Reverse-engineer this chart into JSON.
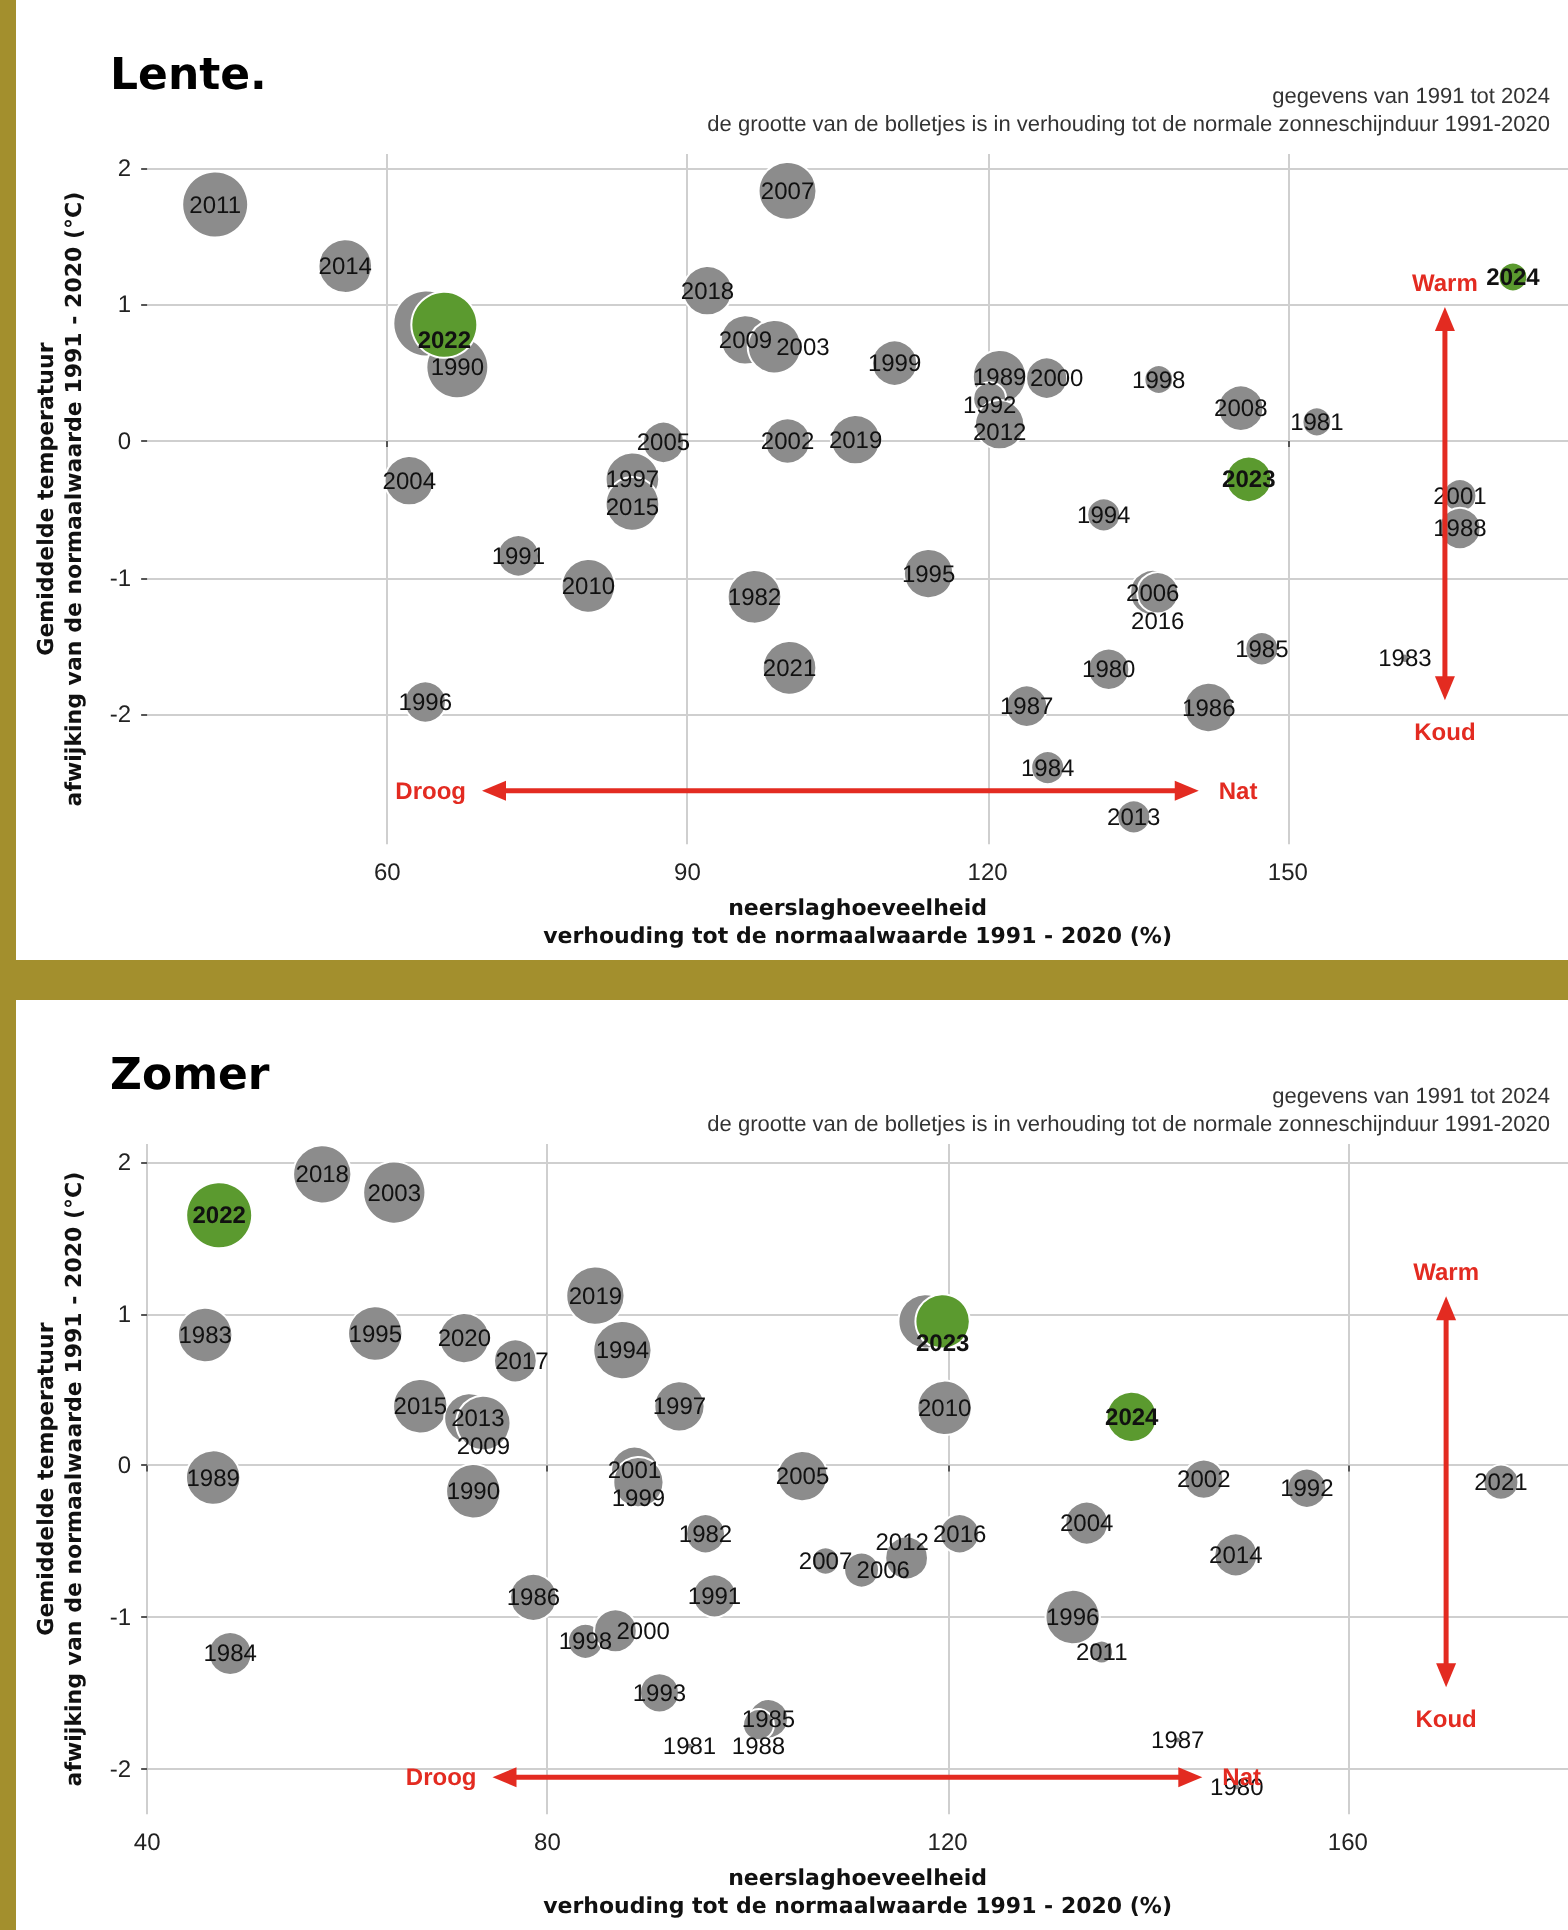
{
  "chart_data": [
    {
      "type": "bubble",
      "title": "Lente.",
      "subtitle": "gegevens van 1991 tot 2024",
      "xlabel": "neerslaghoeveelheid\nverhouding tot de normaalwaarde 1991 - 2020 (%)",
      "ylabel": "Gemiddelde temperatuur\nafwijking van de normaalwaarde 1991 - 2020 (°C)",
      "annotations": [
        "de grootte van de bolletjes is in verhouding tot de normale zonneschijnduur 1991-2020",
        "Droog",
        "Nat",
        "Warm",
        "Koud"
      ],
      "xlim": [
        36,
        178
      ],
      "ylim": [
        -2.95,
        2.1
      ],
      "xticks": [
        60,
        90,
        120,
        150
      ],
      "yticks": [
        -2,
        -1,
        0,
        1,
        2
      ],
      "grid": true,
      "series": [
        {
          "name": "2011",
          "color": "#8c8c8c",
          "x": [
            42.8
          ],
          "values": [
            1.73
          ],
          "sizes": [
            1
          ]
        },
        {
          "name": "2014",
          "color": "#8c8c8c",
          "x": [
            55.8
          ],
          "values": [
            1.28
          ],
          "sizes": [
            0.66
          ]
        },
        {
          "color": "#8c8c8c",
          "x": [
            63.9
          ],
          "values": [
            0.86
          ],
          "sizes": [
            1
          ]
        },
        {
          "name": "1990",
          "color": "#8c8c8c",
          "x": [
            67.0
          ],
          "values": [
            0.54
          ],
          "sizes": [
            0.88
          ]
        },
        {
          "name": "2007",
          "color": "#8c8c8c",
          "x": [
            100.0
          ],
          "values": [
            1.83
          ],
          "sizes": [
            0.77
          ]
        },
        {
          "name": "2018",
          "color": "#8c8c8c",
          "x": [
            92.0
          ],
          "values": [
            1.1
          ],
          "sizes": [
            0.56
          ]
        },
        {
          "name": "2009",
          "color": "#8c8c8c",
          "x": [
            95.8
          ],
          "values": [
            0.74
          ],
          "sizes": [
            0.56
          ]
        },
        {
          "name": "2003",
          "color": "#8c8c8c",
          "x": [
            98.7
          ],
          "values": [
            0.69
          ],
          "sizes": [
            0.66
          ]
        },
        {
          "name": "2005",
          "color": "#8c8c8c",
          "x": [
            87.6
          ],
          "values": [
            -0.01
          ],
          "sizes": [
            0.39
          ]
        },
        {
          "name": "2002",
          "color": "#8c8c8c",
          "x": [
            100.0
          ],
          "values": [
            0.0
          ],
          "sizes": [
            0.47
          ]
        },
        {
          "name": "2004",
          "color": "#8c8c8c",
          "x": [
            62.2
          ],
          "values": [
            -0.29
          ],
          "sizes": [
            0.56
          ]
        },
        {
          "name": "1997",
          "color": "#8c8c8c",
          "x": [
            84.5
          ],
          "values": [
            -0.28
          ],
          "sizes": [
            0.66
          ]
        },
        {
          "name": "2015",
          "color": "#8c8c8c",
          "x": [
            84.5
          ],
          "values": [
            -0.46
          ],
          "sizes": [
            0.66
          ]
        },
        {
          "name": "1991",
          "color": "#8c8c8c",
          "x": [
            73.1
          ],
          "values": [
            -0.84
          ],
          "sizes": [
            0.39
          ]
        },
        {
          "name": "2010",
          "color": "#8c8c8c",
          "x": [
            80.1
          ],
          "values": [
            -1.06
          ],
          "sizes": [
            0.66
          ]
        },
        {
          "name": "1982",
          "color": "#8c8c8c",
          "x": [
            96.7
          ],
          "values": [
            -1.14
          ],
          "sizes": [
            0.66
          ]
        },
        {
          "name": "2021",
          "color": "#8c8c8c",
          "x": [
            100.2
          ],
          "values": [
            -1.66
          ],
          "sizes": [
            0.66
          ]
        },
        {
          "name": "1996",
          "color": "#8c8c8c",
          "x": [
            63.8
          ],
          "values": [
            -1.91
          ],
          "sizes": [
            0.39
          ]
        },
        {
          "name": "1999",
          "color": "#8c8c8c",
          "x": [
            110.7
          ],
          "values": [
            0.57
          ],
          "sizes": [
            0.47
          ]
        },
        {
          "name": "1989",
          "color": "#8c8c8c",
          "x": [
            121.2
          ],
          "values": [
            0.47
          ],
          "sizes": [
            0.66
          ]
        },
        {
          "name": "1992",
          "color": "#8c8c8c",
          "x": [
            120.2
          ],
          "values": [
            0.31
          ],
          "sizes": [
            0.25
          ]
        },
        {
          "name": "2000",
          "color": "#8c8c8c",
          "x": [
            125.9
          ],
          "values": [
            0.46
          ],
          "sizes": [
            0.39
          ]
        },
        {
          "name": "2012",
          "color": "#8c8c8c",
          "x": [
            121.2
          ],
          "values": [
            0.12
          ],
          "sizes": [
            0.56
          ]
        },
        {
          "name": "1998",
          "color": "#8c8c8c",
          "x": [
            137.1
          ],
          "values": [
            0.45
          ],
          "sizes": [
            0.19
          ]
        },
        {
          "name": "2008",
          "color": "#8c8c8c",
          "x": [
            145.3
          ],
          "values": [
            0.24
          ],
          "sizes": [
            0.47
          ]
        },
        {
          "name": "1981",
          "color": "#8c8c8c",
          "x": [
            152.9
          ],
          "values": [
            0.14
          ],
          "sizes": [
            0.19
          ]
        },
        {
          "name": "2019",
          "color": "#8c8c8c",
          "x": [
            106.8
          ],
          "values": [
            0.01
          ],
          "sizes": [
            0.56
          ]
        },
        {
          "name": "1994",
          "color": "#8c8c8c",
          "x": [
            131.6
          ],
          "values": [
            -0.54
          ],
          "sizes": [
            0.25
          ]
        },
        {
          "name": "2001",
          "color": "#8c8c8c",
          "x": [
            167.2
          ],
          "values": [
            -0.4
          ],
          "sizes": [
            0.25
          ]
        },
        {
          "name": "1988",
          "color": "#8c8c8c",
          "x": [
            167.2
          ],
          "values": [
            -0.64
          ],
          "sizes": [
            0.39
          ]
        },
        {
          "name": "1995",
          "color": "#8c8c8c",
          "x": [
            114.1
          ],
          "values": [
            -0.97
          ],
          "sizes": [
            0.56
          ]
        },
        {
          "name": "2006",
          "color": "#8c8c8c",
          "x": [
            136.5
          ],
          "values": [
            -1.11
          ],
          "sizes": [
            0.47
          ]
        },
        {
          "name": "2016",
          "color": "#8c8c8c",
          "x": [
            137.0
          ],
          "values": [
            -1.11
          ],
          "sizes": [
            0.39
          ]
        },
        {
          "name": "1985",
          "color": "#8c8c8c",
          "x": [
            147.4
          ],
          "values": [
            -1.52
          ],
          "sizes": [
            0.25
          ]
        },
        {
          "name": "1983",
          "color": "#8c8c8c",
          "x": [
            161.7
          ],
          "values": [
            -1.59
          ],
          "sizes": [
            0.02
          ]
        },
        {
          "name": "1980",
          "color": "#8c8c8c",
          "x": [
            132.1
          ],
          "values": [
            -1.67
          ],
          "sizes": [
            0.39
          ]
        },
        {
          "name": "1987",
          "color": "#8c8c8c",
          "x": [
            123.9
          ],
          "values": [
            -1.94
          ],
          "sizes": [
            0.39
          ]
        },
        {
          "name": "1986",
          "color": "#8c8c8c",
          "x": [
            142.1
          ],
          "values": [
            -1.95
          ],
          "sizes": [
            0.56
          ]
        },
        {
          "name": "1984",
          "color": "#8c8c8c",
          "x": [
            126.0
          ],
          "values": [
            -2.39
          ],
          "sizes": [
            0.25
          ]
        },
        {
          "name": "2013",
          "color": "#8c8c8c",
          "x": [
            134.6
          ],
          "values": [
            -2.75
          ],
          "sizes": [
            0.25
          ]
        },
        {
          "name": "2022",
          "color": "#5b9a2f",
          "x": [
            65.7
          ],
          "values": [
            0.85
          ],
          "sizes": [
            1
          ]
        },
        {
          "name": "2023",
          "color": "#5b9a2f",
          "x": [
            146.1
          ],
          "values": [
            -0.28
          ],
          "sizes": [
            0.47
          ]
        },
        {
          "name": "2024",
          "color": "#5b9a2f",
          "x": [
            172.5
          ],
          "values": [
            1.2
          ],
          "sizes": [
            0.19
          ]
        }
      ]
    },
    {
      "type": "bubble",
      "title": "Zomer",
      "subtitle": "gegevens van 1991 tot 2024",
      "xlabel": "neerslaghoeveelheid\nverhouding tot de normaalwaarde 1991 - 2020 (%)",
      "ylabel": "Gemiddelde temperatuur\nafwijking van de normaalwaarde 1991 - 2020 (°C)",
      "annotations": [
        "de grootte van de bolletjes is in verhouding tot de normale zonneschijnduur 1991-2020",
        "Droog",
        "Nat",
        "Warm",
        "Koud"
      ],
      "xlim": [
        40,
        182
      ],
      "ylim": [
        -2.3,
        2.12
      ],
      "xticks": [
        40,
        80,
        120,
        160
      ],
      "yticks": [
        -2,
        -1,
        0,
        1,
        2
      ],
      "grid": true,
      "series": [
        {
          "name": "2018",
          "color": "#8c8c8c",
          "x": [
            57.5
          ],
          "values": [
            1.92
          ],
          "sizes": [
            0.78
          ]
        },
        {
          "name": "2003",
          "color": "#8c8c8c",
          "x": [
            64.7
          ],
          "values": [
            1.8
          ],
          "sizes": [
            0.89
          ]
        },
        {
          "name": "1983",
          "color": "#8c8c8c",
          "x": [
            45.8
          ],
          "values": [
            0.86
          ],
          "sizes": [
            0.68
          ]
        },
        {
          "name": "1995",
          "color": "#8c8c8c",
          "x": [
            62.8
          ],
          "values": [
            0.87
          ],
          "sizes": [
            0.68
          ]
        },
        {
          "name": "2020",
          "color": "#8c8c8c",
          "x": [
            71.7
          ],
          "values": [
            0.84
          ],
          "sizes": [
            0.58
          ]
        },
        {
          "name": "2017",
          "color": "#8c8c8c",
          "x": [
            76.8
          ],
          "values": [
            0.69
          ],
          "sizes": [
            0.42
          ]
        },
        {
          "name": "2019",
          "color": "#8c8c8c",
          "x": [
            84.8
          ],
          "values": [
            1.12
          ],
          "sizes": [
            0.78
          ]
        },
        {
          "name": "1994",
          "color": "#8c8c8c",
          "x": [
            87.5
          ],
          "values": [
            0.76
          ],
          "sizes": [
            0.78
          ]
        },
        {
          "name": "2015",
          "color": "#8c8c8c",
          "x": [
            67.3
          ],
          "values": [
            0.39
          ],
          "sizes": [
            0.68
          ]
        },
        {
          "name": "2013",
          "color": "#8c8c8c",
          "x": [
            72.2
          ],
          "values": [
            0.31
          ],
          "sizes": [
            0.58
          ]
        },
        {
          "name": "2009",
          "color": "#8c8c8c",
          "x": [
            73.6
          ],
          "values": [
            0.28
          ],
          "sizes": [
            0.68
          ]
        },
        {
          "name": "1997",
          "color": "#8c8c8c",
          "x": [
            93.2
          ],
          "values": [
            0.39
          ],
          "sizes": [
            0.58
          ]
        },
        {
          "name": "1989",
          "color": "#8c8c8c",
          "x": [
            46.6
          ],
          "values": [
            -0.08
          ],
          "sizes": [
            0.68
          ]
        },
        {
          "name": "1990",
          "color": "#8c8c8c",
          "x": [
            72.6
          ],
          "values": [
            -0.17
          ],
          "sizes": [
            0.68
          ]
        },
        {
          "name": "2001",
          "color": "#8c8c8c",
          "x": [
            88.7
          ],
          "values": [
            -0.03
          ],
          "sizes": [
            0.5
          ]
        },
        {
          "name": "1999",
          "color": "#8c8c8c",
          "x": [
            89.1
          ],
          "values": [
            -0.11
          ],
          "sizes": [
            0.58
          ]
        },
        {
          "name": "1982",
          "color": "#8c8c8c",
          "x": [
            95.8
          ],
          "values": [
            -0.45
          ],
          "sizes": [
            0.35
          ]
        },
        {
          "name": "1986",
          "color": "#8c8c8c",
          "x": [
            78.6
          ],
          "values": [
            -0.87
          ],
          "sizes": [
            0.5
          ]
        },
        {
          "name": "1991",
          "color": "#8c8c8c",
          "x": [
            96.7
          ],
          "values": [
            -0.86
          ],
          "sizes": [
            0.42
          ]
        },
        {
          "name": "1984",
          "color": "#8c8c8c",
          "x": [
            48.3
          ],
          "values": [
            -1.24
          ],
          "sizes": [
            0.42
          ]
        },
        {
          "name": "1998",
          "color": "#8c8c8c",
          "x": [
            83.8
          ],
          "values": [
            -1.16
          ],
          "sizes": [
            0.28
          ]
        },
        {
          "name": "2000",
          "color": "#8c8c8c",
          "x": [
            86.8
          ],
          "values": [
            -1.09
          ],
          "sizes": [
            0.42
          ]
        },
        {
          "name": "1993",
          "color": "#8c8c8c",
          "x": [
            91.2
          ],
          "values": [
            -1.5
          ],
          "sizes": [
            0.35
          ]
        },
        {
          "name": "1985",
          "color": "#8c8c8c",
          "x": [
            102.1
          ],
          "values": [
            -1.67
          ],
          "sizes": [
            0.35
          ]
        },
        {
          "name": "1988",
          "color": "#8c8c8c",
          "x": [
            101.1
          ],
          "values": [
            -1.71
          ],
          "sizes": [
            0.22
          ]
        },
        {
          "name": "1981",
          "color": "#8c8c8c",
          "x": [
            94.2
          ],
          "values": [
            -1.85
          ],
          "sizes": [
            0.01
          ]
        },
        {
          "color": "#8c8c8c",
          "x": [
            117.8
          ],
          "values": [
            0.95
          ],
          "sizes": [
            0.68
          ]
        },
        {
          "name": "2010",
          "color": "#8c8c8c",
          "x": [
            119.7
          ],
          "values": [
            0.38
          ],
          "sizes": [
            0.68
          ]
        },
        {
          "name": "2005",
          "color": "#8c8c8c",
          "x": [
            105.5
          ],
          "values": [
            -0.07
          ],
          "sizes": [
            0.58
          ]
        },
        {
          "name": "2002",
          "color": "#8c8c8c",
          "x": [
            145.6
          ],
          "values": [
            -0.09
          ],
          "sizes": [
            0.35
          ]
        },
        {
          "name": "1992",
          "color": "#8c8c8c",
          "x": [
            155.9
          ],
          "values": [
            -0.15
          ],
          "sizes": [
            0.35
          ]
        },
        {
          "name": "2021",
          "color": "#8c8c8c",
          "x": [
            175.3
          ],
          "values": [
            -0.11
          ],
          "sizes": [
            0.28
          ]
        },
        {
          "name": "2016",
          "color": "#8c8c8c",
          "x": [
            121.2
          ],
          "values": [
            -0.45
          ],
          "sizes": [
            0.35
          ]
        },
        {
          "name": "2004",
          "color": "#8c8c8c",
          "x": [
            133.9
          ],
          "values": [
            -0.38
          ],
          "sizes": [
            0.42
          ]
        },
        {
          "name": "2007",
          "color": "#8c8c8c",
          "x": [
            107.8
          ],
          "values": [
            -0.63
          ],
          "sizes": [
            0.17
          ]
        },
        {
          "name": "2006",
          "color": "#8c8c8c",
          "x": [
            111.4
          ],
          "values": [
            -0.69
          ],
          "sizes": [
            0.28
          ]
        },
        {
          "name": "2012",
          "color": "#8c8c8c",
          "x": [
            115.9
          ],
          "values": [
            -0.61
          ],
          "sizes": [
            0.42
          ]
        },
        {
          "name": "2014",
          "color": "#8c8c8c",
          "x": [
            148.8
          ],
          "values": [
            -0.59
          ],
          "sizes": [
            0.42
          ]
        },
        {
          "name": "1996",
          "color": "#8c8c8c",
          "x": [
            132.5
          ],
          "values": [
            -1.0
          ],
          "sizes": [
            0.68
          ]
        },
        {
          "name": "2011",
          "color": "#8c8c8c",
          "x": [
            135.4
          ],
          "values": [
            -1.23
          ],
          "sizes": [
            0.12
          ]
        },
        {
          "name": "1987",
          "color": "#8c8c8c",
          "x": [
            143.0
          ],
          "values": [
            -1.81
          ],
          "sizes": [
            0.01
          ]
        },
        {
          "name": "1980",
          "color": "#8c8c8c",
          "x": [
            148.9
          ],
          "values": [
            -2.12
          ],
          "sizes": [
            0.01
          ]
        },
        {
          "name": "2022",
          "color": "#5b9a2f",
          "x": [
            47.2
          ],
          "values": [
            1.65
          ],
          "sizes": [
            1
          ]
        },
        {
          "name": "2023",
          "color": "#5b9a2f",
          "x": [
            119.5
          ],
          "values": [
            0.95
          ],
          "sizes": [
            0.68
          ]
        },
        {
          "name": "2024",
          "color": "#5b9a2f",
          "x": [
            138.4
          ],
          "values": [
            0.32
          ],
          "sizes": [
            0.58
          ]
        }
      ]
    }
  ]
}
